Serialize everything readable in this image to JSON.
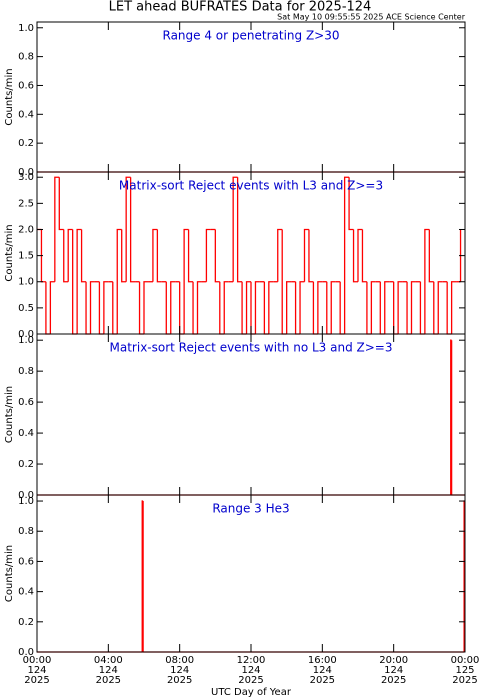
{
  "title": "LET ahead BUFRATES Data for 2025-124",
  "subtitle": "Sat May 10 09:55:55 2025 ACE Science Center",
  "xlabel": "UTC Day of Year",
  "xlim": [
    0,
    24
  ],
  "xticks": [
    {
      "value": 0,
      "label": "00:00\n124\n2025"
    },
    {
      "value": 4,
      "label": "04:00\n124\n2025"
    },
    {
      "value": 8,
      "label": "08:00\n124\n2025"
    },
    {
      "value": 12,
      "label": "12:00\n124\n2025"
    },
    {
      "value": 16,
      "label": "16:00\n124\n2025"
    },
    {
      "value": 20,
      "label": "20:00\n124\n2025"
    },
    {
      "value": 24,
      "label": "00:00\n125\n2025"
    }
  ],
  "chart_data": [
    {
      "type": "line",
      "title": "Range 4 or  penetrating Z>30",
      "ylabel": "Counts/min",
      "color": "#ff0000",
      "ylim": [
        0,
        1.04
      ],
      "yticks": [
        {
          "value": 0,
          "label": "0.0"
        },
        {
          "value": 0.2,
          "label": "0.2"
        },
        {
          "value": 0.4,
          "label": "0.4"
        },
        {
          "value": 0.6,
          "label": "0.6"
        },
        {
          "value": 0.8,
          "label": "0.8"
        },
        {
          "value": 1,
          "label": "1.0"
        }
      ],
      "x": [
        0,
        24
      ],
      "values": [
        0,
        0
      ]
    },
    {
      "type": "line",
      "title": "Matrix-sort Reject events with L3 and Z>=3",
      "ylabel": "Counts/min",
      "color": "#ff0000",
      "ylim": [
        0,
        3.1
      ],
      "yticks": [
        {
          "value": 0,
          "label": "0.0"
        },
        {
          "value": 0.5,
          "label": "0.5"
        },
        {
          "value": 1,
          "label": "1.0"
        },
        {
          "value": 1.5,
          "label": "1.5"
        },
        {
          "value": 2,
          "label": "2.0"
        },
        {
          "value": 2.5,
          "label": "2.5"
        },
        {
          "value": 3,
          "label": "3.0"
        }
      ],
      "x": [
        0,
        0.25,
        0.5,
        0.75,
        1,
        1.25,
        1.5,
        1.75,
        2,
        2.25,
        2.5,
        2.75,
        3,
        3.25,
        3.5,
        3.75,
        4,
        4.25,
        4.5,
        4.75,
        5,
        5.25,
        5.5,
        5.75,
        6,
        6.25,
        6.5,
        6.75,
        7,
        7.25,
        7.5,
        7.75,
        8,
        8.25,
        8.5,
        8.75,
        9,
        9.25,
        9.5,
        9.75,
        10,
        10.25,
        10.5,
        10.75,
        11,
        11.25,
        11.5,
        11.75,
        12,
        12.25,
        12.5,
        12.75,
        13,
        13.25,
        13.5,
        13.75,
        14,
        14.25,
        14.5,
        14.75,
        15,
        15.25,
        15.5,
        15.75,
        16,
        16.25,
        16.5,
        16.75,
        17,
        17.25,
        17.5,
        17.75,
        18,
        18.25,
        18.5,
        18.75,
        19,
        19.25,
        19.5,
        19.75,
        20,
        20.25,
        20.5,
        20.75,
        21,
        21.25,
        21.5,
        21.75,
        22,
        22.25,
        22.5,
        22.75,
        23,
        23.25,
        23.5,
        23.75
      ],
      "values": [
        2,
        1,
        0,
        1,
        3,
        2,
        1,
        2,
        0,
        2,
        1,
        0,
        1,
        1,
        0,
        1,
        1,
        0,
        2,
        1,
        3,
        1,
        1,
        0,
        1,
        1,
        2,
        1,
        1,
        0,
        1,
        1,
        0,
        2,
        1,
        0,
        1,
        1,
        2,
        2,
        1,
        0,
        1,
        1,
        3,
        1,
        0,
        1,
        0,
        1,
        1,
        0,
        1,
        1,
        2,
        0,
        1,
        1,
        0,
        1,
        2,
        1,
        0,
        1,
        1,
        0,
        1,
        1,
        0,
        3,
        2,
        1,
        2,
        1,
        0,
        1,
        1,
        0,
        1,
        1,
        0,
        1,
        1,
        0,
        1,
        1,
        0,
        2,
        1,
        0,
        1,
        1,
        0,
        1,
        1,
        2
      ]
    },
    {
      "type": "line",
      "title": "Matrix-sort Reject events with no L3 and Z>=3",
      "ylabel": "Counts/min",
      "color": "#ff0000",
      "ylim": [
        0,
        1.04
      ],
      "yticks": [
        {
          "value": 0,
          "label": "0.0"
        },
        {
          "value": 0.2,
          "label": "0.2"
        },
        {
          "value": 0.4,
          "label": "0.4"
        },
        {
          "value": 0.6,
          "label": "0.6"
        },
        {
          "value": 0.8,
          "label": "0.8"
        },
        {
          "value": 1,
          "label": "1.0"
        }
      ],
      "x": [
        0,
        23.2,
        23.25,
        24
      ],
      "values": [
        0,
        1,
        0,
        0
      ]
    },
    {
      "type": "line",
      "title": "Range 3 He3",
      "ylabel": "Counts/min",
      "color": "#ff0000",
      "ylim": [
        0,
        1.04
      ],
      "yticks": [
        {
          "value": 0,
          "label": "0.0"
        },
        {
          "value": 0.2,
          "label": "0.2"
        },
        {
          "value": 0.4,
          "label": "0.4"
        },
        {
          "value": 0.6,
          "label": "0.6"
        },
        {
          "value": 0.8,
          "label": "0.8"
        },
        {
          "value": 1,
          "label": "1.0"
        }
      ],
      "x": [
        0,
        5.9,
        5.95,
        23.95,
        24
      ],
      "values": [
        0,
        1,
        0,
        1,
        1
      ]
    }
  ]
}
